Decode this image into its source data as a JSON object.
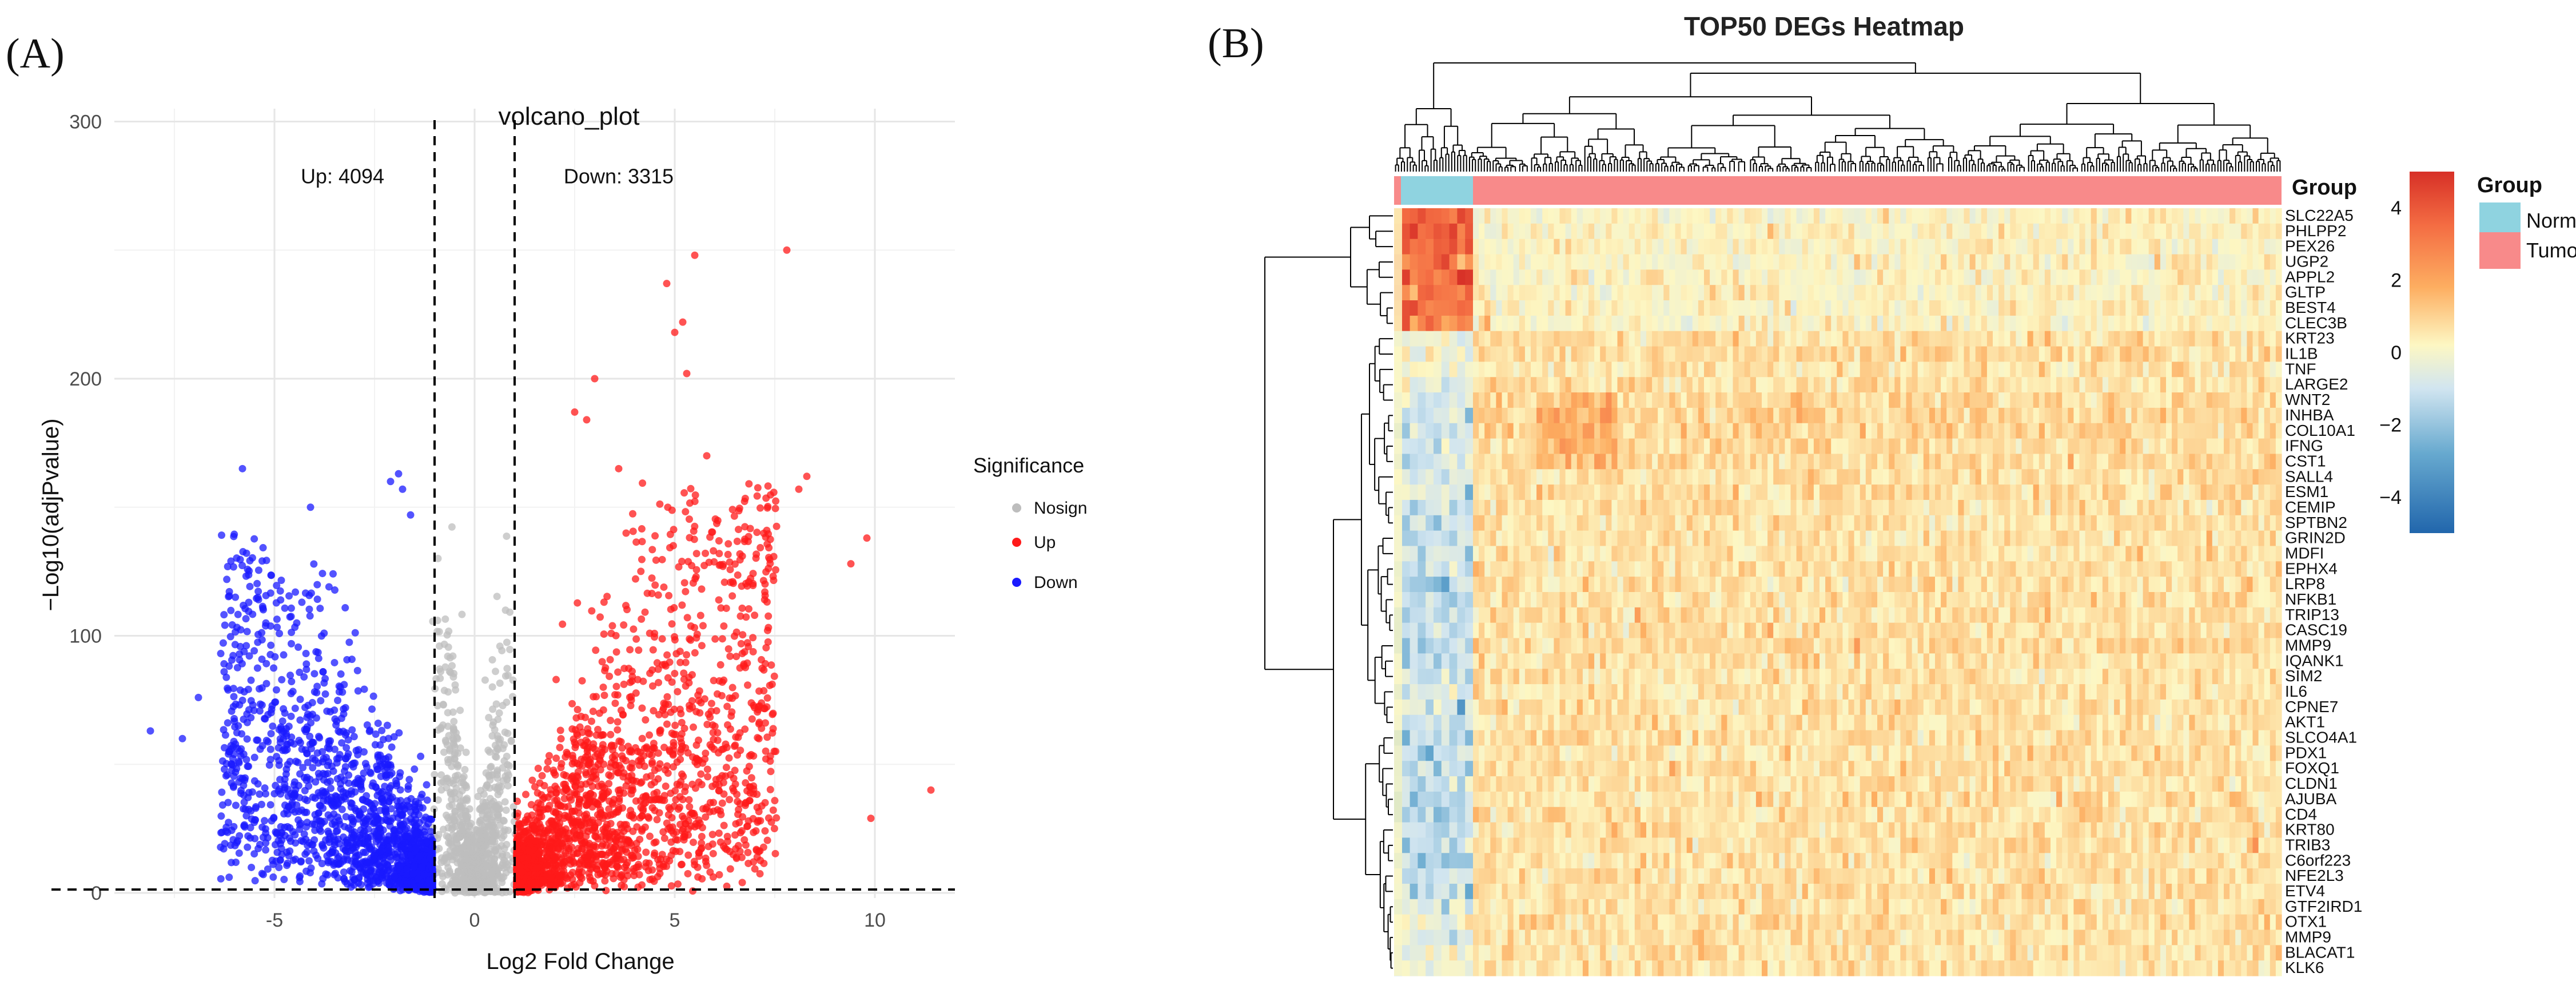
{
  "panels": {
    "a_label": "(A)",
    "b_label": "(B)"
  },
  "colors": {
    "up": "#ff1a1a",
    "down": "#1a1aff",
    "nosign": "#bdbdbd",
    "normal": "#8fd3e0",
    "tumor": "#f88a8a"
  },
  "chart_data": [
    {
      "type": "scatter",
      "title": "volcano_plot",
      "xlabel": "Log2 Fold Change",
      "ylabel": "−Log10(adjPvalue)",
      "xlim": [
        -9,
        12
      ],
      "ylim": [
        -2,
        305
      ],
      "xticks": [
        -5,
        0,
        5,
        10
      ],
      "xtick_labels": [
        "-5",
        "0",
        "5",
        "10"
      ],
      "yticks": [
        0,
        100,
        200,
        300
      ],
      "ytick_labels": [
        "0",
        "100",
        "200",
        "300"
      ],
      "fc_thresholds": [
        -1,
        1
      ],
      "p_threshold_line": 1.3,
      "annotations": {
        "up": "Up: 4094",
        "down": "Down: 3315"
      },
      "legend": {
        "title": "Significance",
        "entries": [
          "Nosign",
          "Up",
          "Down"
        ]
      },
      "counts": {
        "up": 4094,
        "down": 3315
      },
      "highlighted_points": [
        {
          "x": 7.8,
          "y": 250,
          "group": "Up"
        },
        {
          "x": 5.5,
          "y": 248,
          "group": "Up"
        },
        {
          "x": 4.8,
          "y": 237,
          "group": "Up"
        },
        {
          "x": 5.2,
          "y": 222,
          "group": "Up"
        },
        {
          "x": 5.0,
          "y": 218,
          "group": "Up"
        },
        {
          "x": 5.3,
          "y": 202,
          "group": "Up"
        },
        {
          "x": 3.0,
          "y": 200,
          "group": "Up"
        },
        {
          "x": 2.5,
          "y": 187,
          "group": "Up"
        },
        {
          "x": 2.8,
          "y": 184,
          "group": "Up"
        },
        {
          "x": 5.8,
          "y": 170,
          "group": "Up"
        },
        {
          "x": 8.3,
          "y": 162,
          "group": "Up"
        },
        {
          "x": 8.1,
          "y": 157,
          "group": "Up"
        },
        {
          "x": 3.6,
          "y": 165,
          "group": "Up"
        },
        {
          "x": 9.8,
          "y": 138,
          "group": "Up"
        },
        {
          "x": 7.3,
          "y": 141,
          "group": "Up"
        },
        {
          "x": 9.4,
          "y": 128,
          "group": "Up"
        },
        {
          "x": 11.4,
          "y": 40,
          "group": "Up"
        },
        {
          "x": 9.9,
          "y": 29,
          "group": "Up"
        },
        {
          "x": -5.8,
          "y": 165,
          "group": "Down"
        },
        {
          "x": -1.9,
          "y": 163,
          "group": "Down"
        },
        {
          "x": -1.8,
          "y": 157,
          "group": "Down"
        },
        {
          "x": -2.1,
          "y": 160,
          "group": "Down"
        },
        {
          "x": -4.1,
          "y": 150,
          "group": "Down"
        },
        {
          "x": -1.6,
          "y": 147,
          "group": "Down"
        },
        {
          "x": -8.1,
          "y": 63,
          "group": "Down"
        },
        {
          "x": -6.9,
          "y": 76,
          "group": "Down"
        },
        {
          "x": -7.3,
          "y": 60,
          "group": "Down"
        }
      ]
    },
    {
      "type": "heatmap",
      "title": "TOP50 DEGs Heatmap",
      "genes": [
        "SLC22A5",
        "PHLPP2",
        "PEX26",
        "UGP2",
        "APPL2",
        "GLTP",
        "BEST4",
        "CLEC3B",
        "KRT23",
        "IL1B",
        "TNF",
        "LARGE2",
        "WNT2",
        "INHBA",
        "COL10A1",
        "IFNG",
        "CST1",
        "SALL4",
        "ESM1",
        "CEMIP",
        "SPTBN2",
        "GRIN2D",
        "MDFI",
        "EPHX4",
        "LRP8",
        "NFKB1",
        "TRIP13",
        "CASC19",
        "MMP9",
        "IQANK1",
        "SIM2",
        "IL6",
        "CPNE7",
        "AKT1",
        "SLCO4A1",
        "PDX1",
        "FOXQ1",
        "CLDN1",
        "AJUBA",
        "CD4",
        "KRT80",
        "TRIB3",
        "C6orf223",
        "NFE2L3",
        "ETV4",
        "GTF2IRD1",
        "OTX1",
        "MMP9",
        "BLACAT1",
        "KLK6"
      ],
      "groups": [
        "Normal",
        "Tumor"
      ],
      "normal_block_means": [
        3.2,
        3.6,
        3.4,
        3.1,
        3.3,
        3.0,
        3.2,
        2.9,
        -0.5,
        -0.6,
        -0.7,
        -1.0,
        -1.2,
        -1.4,
        -1.5,
        -1.4,
        -1.3,
        -1.5,
        -1.6,
        -1.7,
        -1.7,
        -1.8,
        -1.6,
        -1.8,
        -1.9,
        -1.9,
        -2.0,
        -1.9,
        -1.8,
        -1.7,
        -1.8,
        -1.6,
        -1.7,
        -1.8,
        -1.9,
        -1.8,
        -1.8,
        -1.9,
        -2.0,
        -1.9,
        -2.0,
        -1.9,
        -2.0,
        -1.9,
        -1.8,
        -1.0,
        -0.7,
        -0.6,
        -0.5,
        -0.4
      ],
      "tumor_block_means": [
        0.0,
        0.0,
        0.0,
        0.0,
        0.0,
        0.0,
        0.0,
        0.0,
        0.5,
        0.6,
        0.4,
        0.5,
        0.7,
        0.8,
        0.8,
        0.6,
        0.6,
        0.5,
        0.5,
        0.5,
        0.5,
        0.5,
        0.5,
        0.5,
        0.5,
        0.5,
        0.5,
        0.5,
        0.6,
        0.5,
        0.5,
        0.5,
        0.5,
        0.5,
        0.5,
        0.5,
        0.5,
        0.5,
        0.5,
        0.5,
        0.5,
        0.5,
        0.5,
        0.5,
        0.5,
        0.4,
        0.6,
        0.5,
        0.5,
        0.5
      ],
      "color_scale": {
        "min": -5,
        "max": 5,
        "ticks": [
          4,
          2,
          0,
          -2,
          -4
        ],
        "tick_labels": [
          "4",
          "2",
          "0",
          "−2",
          "−4"
        ],
        "colors": [
          "#2166ac",
          "#67a9cf",
          "#d1e5f0",
          "#fdf7c3",
          "#fdae61",
          "#f46d43",
          "#d73027"
        ]
      },
      "legend": {
        "annotation_title": "Group",
        "group_legend_title": "Group",
        "group_entries": [
          "Normal",
          "Tumor"
        ],
        "group_entries_visible": [
          "Norm",
          "Tumo"
        ]
      }
    }
  ]
}
